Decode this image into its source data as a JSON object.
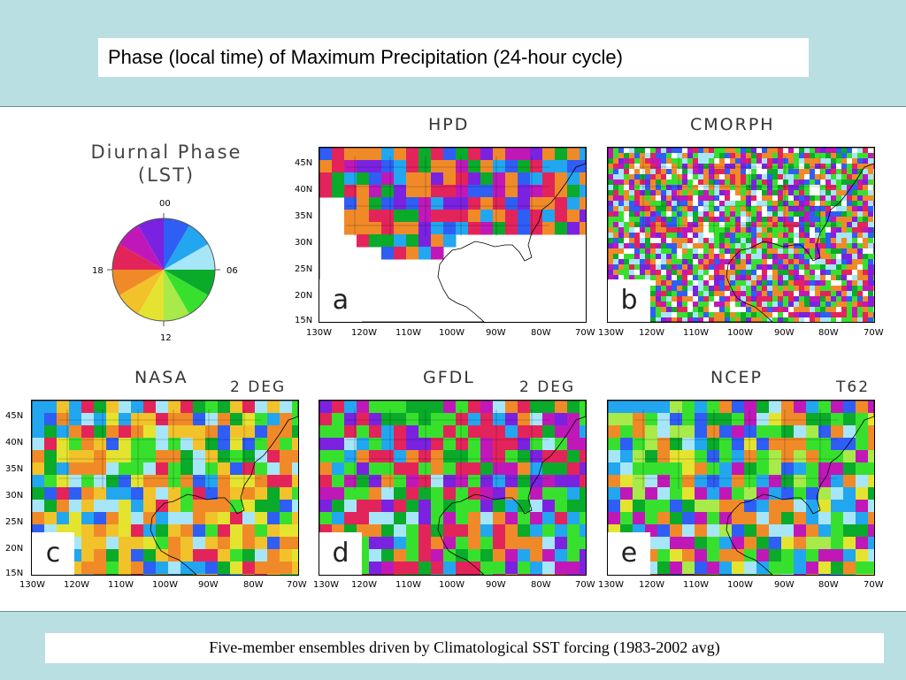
{
  "header": {
    "title": "Phase (local time) of Maximum Precipitation (24-hour cycle)"
  },
  "footer": {
    "caption": "Five-member ensembles driven by Climatological SST forcing (1983-2002 avg)"
  },
  "legend": {
    "title_line1": "Diurnal Phase",
    "title_line2": "(LST)",
    "hour_top": "00",
    "hour_right": "06",
    "hour_bottom": "12",
    "hour_left": "18",
    "wedge_colors": [
      "#2f5ef5",
      "#22a6f0",
      "#a7e6f8",
      "#0aaa2a",
      "#38e02e",
      "#a7ea4a",
      "#e4e430",
      "#f2c22a",
      "#f08a28",
      "#e3245a",
      "#c018b8",
      "#7a22e0"
    ]
  },
  "axes": {
    "lat_labels": [
      "45N",
      "40N",
      "35N",
      "30N",
      "25N",
      "20N",
      "15N"
    ],
    "lon_labels": [
      "130W",
      "120W",
      "110W",
      "100W",
      "90W",
      "80W",
      "70W"
    ]
  },
  "panels": [
    {
      "id": "a",
      "title": "HPD",
      "resolution": "",
      "letter": "a"
    },
    {
      "id": "b",
      "title": "CMORPH",
      "resolution": "",
      "letter": "b"
    },
    {
      "id": "c",
      "title": "NASA",
      "resolution": "2 DEG",
      "letter": "c"
    },
    {
      "id": "d",
      "title": "GFDL",
      "resolution": "2 DEG",
      "letter": "d"
    },
    {
      "id": "e",
      "title": "NCEP",
      "resolution": "T62",
      "letter": "e"
    }
  ]
}
